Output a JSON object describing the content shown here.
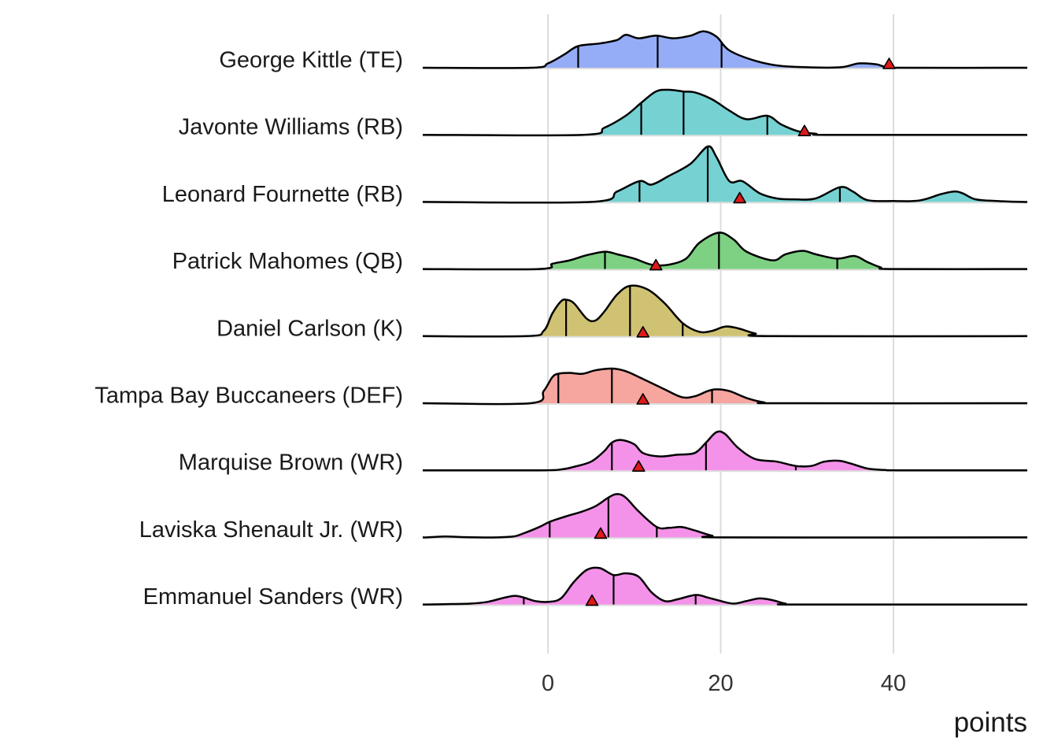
{
  "chart_data": {
    "type": "ridgeline",
    "title": "",
    "xlabel": "points",
    "ylabel": "",
    "xlim": [
      -14.5,
      55.5
    ],
    "x_ticks": [
      0,
      20,
      40
    ],
    "grid": "vertical major lines at 0, 20, 40",
    "legend": "none",
    "marker": "red triangle per player",
    "series": [
      {
        "name": "George Kittle (TE)",
        "color": "#8fa9f5",
        "marker": 39.5,
        "quantiles": [
          3.5,
          12.7,
          20.1
        ],
        "density": [
          [
            -2,
            0
          ],
          [
            0,
            2.5
          ],
          [
            2,
            8
          ],
          [
            3.5,
            12.5
          ],
          [
            6,
            14
          ],
          [
            8,
            16
          ],
          [
            9,
            19
          ],
          [
            10.5,
            17
          ],
          [
            12.5,
            18.5
          ],
          [
            14.5,
            17
          ],
          [
            16.5,
            18.5
          ],
          [
            18,
            21
          ],
          [
            19.5,
            18
          ],
          [
            21,
            10
          ],
          [
            24,
            4
          ],
          [
            27,
            1
          ],
          [
            31,
            0.2
          ],
          [
            34,
            0.3
          ],
          [
            36,
            2.5
          ],
          [
            38,
            2
          ],
          [
            39,
            0.6
          ],
          [
            41,
            0
          ]
        ]
      },
      {
        "name": "Javonte Williams (RB)",
        "color": "#6fd0d0",
        "marker": 29.7,
        "quantiles": [
          10.8,
          15.7,
          25.4
        ],
        "density": [
          [
            4,
            0
          ],
          [
            6.5,
            4
          ],
          [
            9,
            11
          ],
          [
            10.8,
            18.5
          ],
          [
            12.5,
            25
          ],
          [
            14,
            26
          ],
          [
            15.7,
            25
          ],
          [
            17,
            24.5
          ],
          [
            19,
            20.5
          ],
          [
            21,
            14
          ],
          [
            23,
            9
          ],
          [
            25.4,
            11
          ],
          [
            27,
            6
          ],
          [
            29,
            2
          ],
          [
            31,
            0.6
          ],
          [
            33,
            0
          ]
        ]
      },
      {
        "name": "Leonard Fournette (RB)",
        "color": "#6fd0d0",
        "marker": 22.2,
        "quantiles": [
          10.6,
          18.5,
          33.8
        ],
        "density": [
          [
            5,
            0
          ],
          [
            8,
            6
          ],
          [
            10.6,
            12
          ],
          [
            12,
            10
          ],
          [
            14,
            15
          ],
          [
            16.5,
            22
          ],
          [
            18.5,
            32
          ],
          [
            19.5,
            26
          ],
          [
            21,
            12
          ],
          [
            22.5,
            12
          ],
          [
            24.5,
            5
          ],
          [
            26.5,
            2
          ],
          [
            28.5,
            1.5
          ],
          [
            31,
            2
          ],
          [
            33.8,
            8.5
          ],
          [
            35.3,
            6
          ],
          [
            37,
            1
          ],
          [
            40,
            0.5
          ],
          [
            43,
            0.8
          ],
          [
            45.5,
            4.5
          ],
          [
            47,
            6
          ],
          [
            48,
            5
          ],
          [
            49.5,
            1.5
          ],
          [
            52,
            0.5
          ],
          [
            55,
            0
          ]
        ]
      },
      {
        "name": "Patrick Mahomes (QB)",
        "color": "#77cf7c",
        "marker": 12.5,
        "quantiles": [
          6.6,
          19.8,
          33.5
        ],
        "density": [
          [
            -1,
            0
          ],
          [
            0.5,
            3
          ],
          [
            2.5,
            5
          ],
          [
            4.5,
            8
          ],
          [
            6.6,
            10
          ],
          [
            8,
            8.5
          ],
          [
            10,
            6
          ],
          [
            12,
            2.5
          ],
          [
            14,
            2.5
          ],
          [
            16,
            6
          ],
          [
            17.5,
            15
          ],
          [
            19.8,
            21
          ],
          [
            21.5,
            17
          ],
          [
            23,
            10
          ],
          [
            26,
            5
          ],
          [
            27.5,
            8.5
          ],
          [
            29.5,
            10.5
          ],
          [
            31,
            8.5
          ],
          [
            33.5,
            6
          ],
          [
            35.5,
            7.5
          ],
          [
            37,
            4
          ],
          [
            38.5,
            1
          ],
          [
            40,
            0
          ]
        ]
      },
      {
        "name": "Daniel Carlson (K)",
        "color": "#cdbf6c",
        "marker": 11.0,
        "quantiles": [
          2.1,
          9.5,
          15.6
        ],
        "density": [
          [
            -2.5,
            0
          ],
          [
            -0.5,
            3
          ],
          [
            0.5,
            13
          ],
          [
            1.5,
            20
          ],
          [
            2.1,
            21
          ],
          [
            3,
            19
          ],
          [
            4.5,
            10
          ],
          [
            5.5,
            9
          ],
          [
            6.5,
            14
          ],
          [
            8,
            24
          ],
          [
            9.5,
            29
          ],
          [
            11.5,
            27
          ],
          [
            13.5,
            19
          ],
          [
            15.6,
            7.5
          ],
          [
            17.5,
            2.5
          ],
          [
            19,
            3
          ],
          [
            20.5,
            5.5
          ],
          [
            22,
            4.5
          ],
          [
            24,
            1.5
          ],
          [
            26,
            0
          ]
        ]
      },
      {
        "name": "Tampa Bay Buccaneers (DEF)",
        "color": "#f5a09a",
        "marker": 11.0,
        "quantiles": [
          1.2,
          7.4,
          19.0
        ],
        "density": [
          [
            -2,
            0
          ],
          [
            -0.5,
            7
          ],
          [
            0.5,
            15
          ],
          [
            1.2,
            17
          ],
          [
            2.5,
            17.5
          ],
          [
            4,
            17
          ],
          [
            5.5,
            19
          ],
          [
            7.4,
            20
          ],
          [
            9,
            18.5
          ],
          [
            11,
            14
          ],
          [
            13.5,
            8
          ],
          [
            15.5,
            3.5
          ],
          [
            17,
            4
          ],
          [
            18.5,
            7
          ],
          [
            19.5,
            8
          ],
          [
            21,
            7
          ],
          [
            23,
            3
          ],
          [
            25,
            0.5
          ],
          [
            27,
            0
          ]
        ]
      },
      {
        "name": "Marquise Brown (WR)",
        "color": "#f38ce8",
        "marker": 10.5,
        "quantiles": [
          7.4,
          18.3,
          28.7
        ],
        "density": [
          [
            -1,
            0
          ],
          [
            1.5,
            0.5
          ],
          [
            3,
            2
          ],
          [
            5,
            5
          ],
          [
            6.5,
            11
          ],
          [
            7.4,
            16
          ],
          [
            8.5,
            17.5
          ],
          [
            10,
            15
          ],
          [
            11,
            10
          ],
          [
            13,
            8
          ],
          [
            15,
            9
          ],
          [
            17,
            10
          ],
          [
            18.3,
            16
          ],
          [
            19.5,
            22
          ],
          [
            20.5,
            21
          ],
          [
            22,
            13
          ],
          [
            24,
            6.5
          ],
          [
            26.5,
            5
          ],
          [
            28.7,
            2.5
          ],
          [
            30.5,
            2.5
          ],
          [
            32,
            5
          ],
          [
            33.7,
            5.5
          ],
          [
            35,
            4
          ],
          [
            37,
            1
          ],
          [
            39,
            0.2
          ],
          [
            41,
            0
          ]
        ]
      },
      {
        "name": "Laviska Shenault Jr. (WR)",
        "color": "#f38ce8",
        "marker": 6.1,
        "quantiles": [
          0.2,
          7.0,
          12.6
        ],
        "density": [
          [
            -14,
            0
          ],
          [
            -12,
            0.5
          ],
          [
            -10,
            0.2
          ],
          [
            -8,
            0
          ],
          [
            -6,
            0
          ],
          [
            -4,
            0.5
          ],
          [
            -3,
            2
          ],
          [
            -1,
            6
          ],
          [
            0.2,
            9
          ],
          [
            2,
            12
          ],
          [
            4,
            15
          ],
          [
            5.5,
            18
          ],
          [
            7,
            23
          ],
          [
            8,
            25
          ],
          [
            9,
            23
          ],
          [
            10.5,
            15
          ],
          [
            12.6,
            6
          ],
          [
            14,
            5.5
          ],
          [
            15.5,
            6
          ],
          [
            17,
            4
          ],
          [
            19,
            1
          ],
          [
            21,
            0
          ]
        ]
      },
      {
        "name": "Emmanuel Sanders (WR)",
        "color": "#f38ce8",
        "marker": 5.1,
        "quantiles": [
          -2.8,
          7.6,
          17.1
        ],
        "density": [
          [
            -14,
            0
          ],
          [
            -12,
            0.2
          ],
          [
            -9,
            0.5
          ],
          [
            -7,
            1.5
          ],
          [
            -5,
            4
          ],
          [
            -3.8,
            5
          ],
          [
            -2.8,
            4
          ],
          [
            -1.5,
            2
          ],
          [
            0,
            1.5
          ],
          [
            1.5,
            3.5
          ],
          [
            3,
            13
          ],
          [
            4.5,
            20
          ],
          [
            6,
            21
          ],
          [
            7.6,
            17
          ],
          [
            9,
            18
          ],
          [
            10.5,
            16
          ],
          [
            12,
            7
          ],
          [
            13.5,
            2
          ],
          [
            15,
            3
          ],
          [
            17.1,
            5.5
          ],
          [
            18.5,
            4
          ],
          [
            20,
            2
          ],
          [
            21.5,
            0.5
          ],
          [
            23,
            2
          ],
          [
            24.5,
            3.5
          ],
          [
            26,
            2.5
          ],
          [
            27.5,
            0.5
          ],
          [
            29,
            0
          ]
        ]
      }
    ]
  },
  "colors": {
    "marker_fill": "#e0191a",
    "grid": "#dcdcdc",
    "outline": "#000000"
  }
}
